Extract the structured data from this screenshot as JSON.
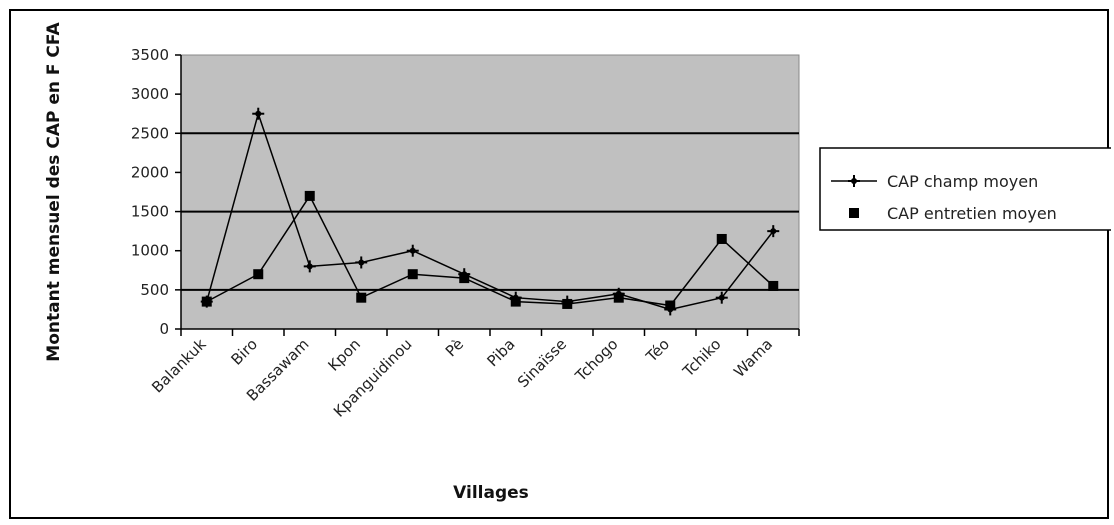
{
  "chart_data": {
    "type": "line",
    "title": "",
    "xlabel": "Villages",
    "ylabel": "Montant mensuel des CAP en F CFA",
    "ylim": [
      0,
      3500
    ],
    "yticks": [
      0,
      500,
      1000,
      1500,
      2000,
      2500,
      3000,
      3500
    ],
    "ytick_labels": [
      "0",
      "500",
      "1000",
      "1500",
      "2000",
      "2500",
      "3000",
      "3500"
    ],
    "categories": [
      "Balankuk",
      "Biro",
      "Bassawam",
      "Kpon",
      "Kpanguidinou",
      "Pè",
      "Piba",
      "Sinaïsse",
      "Tchogo",
      "Téo",
      "Tchiko",
      "Wama"
    ],
    "series": [
      {
        "name": "CAP champ moyen",
        "marker": "plus",
        "color": "#000000",
        "values": [
          350,
          2750,
          800,
          850,
          1000,
          700,
          400,
          350,
          450,
          250,
          400,
          1250
        ]
      },
      {
        "name": "CAP entretien moyen",
        "marker": "square",
        "color": "#000000",
        "values": [
          350,
          700,
          1700,
          400,
          700,
          650,
          350,
          320,
          400,
          300,
          1150,
          550
        ]
      }
    ],
    "grid": "horizontal major lines at 500, 1500, 2500",
    "plot_background": "#c0c0c0",
    "legend_position": "right"
  }
}
